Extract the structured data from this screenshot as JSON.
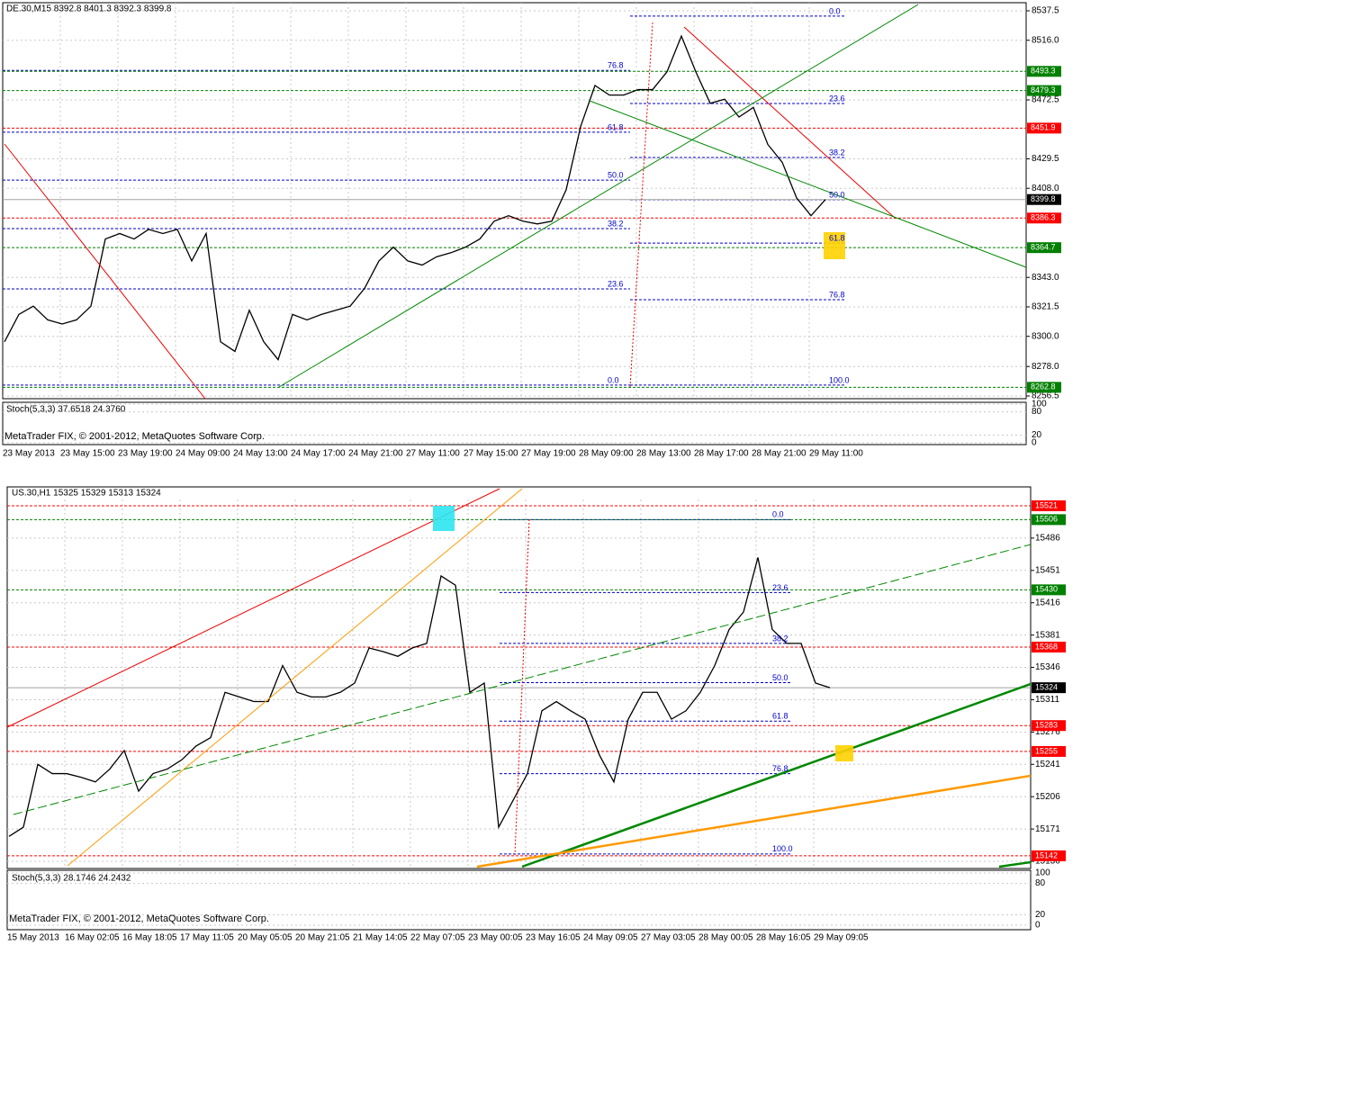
{
  "chart_data": [
    {
      "type": "line",
      "title": "DE.30,M15  8392.8 8401.3 8392.3 8399.8",
      "stoch_title": "Stoch(5,3,3) 37.6518 24.3760",
      "watermark": "MetaTrader FIX, © 2001-2012, MetaQuotes Software Corp.",
      "grid": true,
      "ylim": [
        8254.5,
        8543.4
      ],
      "yticks": [
        8537.5,
        {
          "value": 8516,
          "label": "8516.0"
        },
        8472.5,
        8429.5,
        {
          "value": 8408,
          "label": "8408.0"
        },
        {
          "value": 8343,
          "label": "8343.0"
        },
        8321.5,
        {
          "value": 8300,
          "label": "8300.0"
        },
        {
          "value": 8278,
          "label": "8278.0"
        },
        8256.5
      ],
      "time_labels": [
        "23 May 2013",
        "23 May 15:00",
        "23 May 19:00",
        "24 May 09:00",
        "24 May 13:00",
        "24 May 17:00",
        "24 May 21:00",
        "27 May 11:00",
        "27 May 15:00",
        "27 May 19:00",
        "28 May 09:00",
        "28 May 13:00",
        "28 May 17:00",
        "28 May 21:00",
        "29 May 11:00"
      ],
      "color": "#000000",
      "values": [
        8296,
        8316,
        8322,
        8312,
        8309,
        8312,
        8322,
        8371,
        8375,
        8371,
        8378,
        8375,
        8378,
        8355,
        8375,
        8296,
        8289,
        8319,
        8296,
        8283,
        8316,
        8312,
        8316,
        8319,
        8322,
        8335,
        8355,
        8365,
        8355,
        8352,
        8358,
        8361,
        8365,
        8371,
        8384,
        8388,
        8384,
        8382,
        8384,
        8407,
        8453,
        8483,
        8476,
        8476,
        8480,
        8480,
        8493,
        8519,
        8493,
        8470,
        8473,
        8460,
        8467,
        8440,
        8427,
        8401,
        8388,
        8399.8
      ],
      "levels": [
        {
          "price": 8493.3,
          "color": "#008000"
        },
        {
          "price": 8479.3,
          "color": "#008000"
        },
        {
          "price": 8451.9,
          "color": "#ff0000"
        },
        {
          "price": 8399.8,
          "color": "#000000"
        },
        {
          "price": 8386.3,
          "color": "#ff0000"
        },
        {
          "price": 8364.7,
          "color": "#008000"
        },
        {
          "price": 8262.8,
          "color": "#008000"
        }
      ],
      "fib": [
        [
          {
            "label": "0.0",
            "price": 8264.4
          },
          {
            "label": "23.6",
            "price": 8334.6
          },
          {
            "label": "38.2",
            "price": 8378.6
          },
          {
            "label": "50.0",
            "price": 8414
          },
          {
            "label": "61.8",
            "price": 8448.9
          },
          {
            "label": "76.8",
            "price": 8494
          }
        ],
        [
          {
            "label": "0.0",
            "price": 8533.6
          },
          {
            "label": "23.6",
            "price": 8469.9
          },
          {
            "label": "38.2",
            "price": 8430.5
          },
          {
            "label": "50.0",
            "price": 8399.6
          },
          {
            "label": "61.8",
            "price": 8368
          },
          {
            "label": "76.8",
            "price": 8326.7
          },
          {
            "label": "100.0",
            "price": 8264.4
          }
        ]
      ],
      "stoch_ylim": [
        0,
        100
      ],
      "stoch_ticks": [
        100,
        80,
        20,
        0
      ]
    },
    {
      "type": "line",
      "title": "US.30,H1  15325 15329 15313 15324",
      "stoch_title": "Stoch(5,3,3) 28.1746 24.2432",
      "watermark": "MetaTrader FIX, © 2001-2012, MetaQuotes Software Corp.",
      "grid": true,
      "ylim": [
        15130.2,
        15527.8
      ],
      "yticks": [
        15486,
        15451,
        15416,
        15381,
        15346,
        15311,
        15276,
        15241,
        15206,
        15171,
        15136
      ],
      "time_labels": [
        "15 May 2013",
        "16 May 02:05",
        "16 May 18:05",
        "17 May 11:05",
        "20 May 05:05",
        "20 May 21:05",
        "21 May 14:05",
        "22 May 07:05",
        "23 May 00:05",
        "23 May 16:05",
        "24 May 09:05",
        "27 May 03:05",
        "28 May 00:05",
        "28 May 16:05",
        "29 May 09:05"
      ],
      "color": "#000000",
      "values": [
        15163,
        15173,
        15241,
        15231,
        15231,
        15227,
        15222,
        15236,
        15256,
        15212,
        15231,
        15236,
        15246,
        15261,
        15270,
        15319,
        15314,
        15309,
        15309,
        15348,
        15319,
        15314,
        15314,
        15319,
        15329,
        15367,
        15363,
        15358,
        15367,
        15372,
        15445,
        15435,
        15319,
        15329,
        15173,
        15202,
        15231,
        15299,
        15309,
        15299,
        15290,
        15251,
        15222,
        15290,
        15319,
        15319,
        15290,
        15299,
        15319,
        15348,
        15387,
        15406,
        15465,
        15387,
        15372,
        15372,
        15329,
        15324
      ],
      "levels": [
        {
          "price": 15521,
          "color": "#ff0000"
        },
        {
          "price": 15506,
          "color": "#008000"
        },
        {
          "price": 15430,
          "color": "#008000"
        },
        {
          "price": 15368,
          "color": "#ff0000"
        },
        {
          "price": 15324,
          "color": "#000000"
        },
        {
          "price": 15283,
          "color": "#ff0000"
        },
        {
          "price": 15255,
          "color": "#ff0000"
        },
        {
          "price": 15142,
          "color": "#ff0000"
        }
      ],
      "fib": [
        [
          {
            "label": "0.0",
            "price": 15506
          },
          {
            "label": "23.6",
            "price": 15427
          },
          {
            "label": "38.2",
            "price": 15372
          },
          {
            "label": "50.0",
            "price": 15329.5
          },
          {
            "label": "61.8",
            "price": 15287.8
          },
          {
            "label": "76.8",
            "price": 15231
          },
          {
            "label": "100.0",
            "price": 15144
          }
        ]
      ],
      "stoch_ylim": [
        0,
        100
      ],
      "stoch_ticks": [
        100,
        80,
        20,
        0
      ]
    }
  ]
}
